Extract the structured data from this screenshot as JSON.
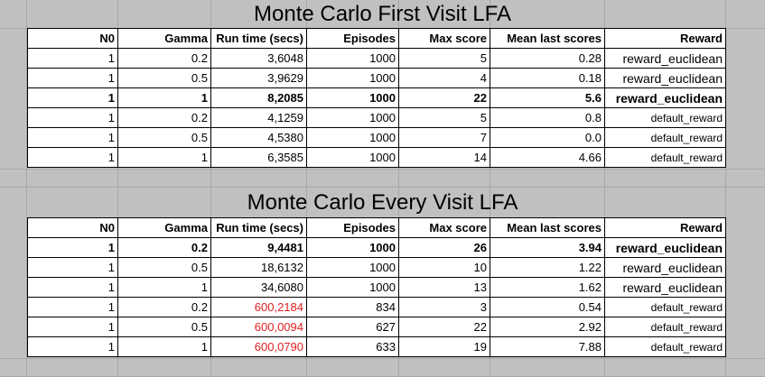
{
  "columns": [
    "N0",
    "Gamma",
    "Run time (secs)",
    "Episodes",
    "Max score",
    "Mean last scores",
    "Reward"
  ],
  "tables": [
    {
      "title": "Monte Carlo First Visit LFA",
      "rows": [
        {
          "n0": "1",
          "gamma": "0.2",
          "runtime": "3,6048",
          "episodes": "1000",
          "max_score": "5",
          "mean": "0.28",
          "reward": "reward_euclidean",
          "bold": false,
          "red_runtime": false
        },
        {
          "n0": "1",
          "gamma": "0.5",
          "runtime": "3,9629",
          "episodes": "1000",
          "max_score": "4",
          "mean": "0.18",
          "reward": "reward_euclidean",
          "bold": false,
          "red_runtime": false
        },
        {
          "n0": "1",
          "gamma": "1",
          "runtime": "8,2085",
          "episodes": "1000",
          "max_score": "22",
          "mean": "5.6",
          "reward": "reward_euclidean",
          "bold": true,
          "red_runtime": false
        },
        {
          "n0": "1",
          "gamma": "0.2",
          "runtime": "4,1259",
          "episodes": "1000",
          "max_score": "5",
          "mean": "0.8",
          "reward": "default_reward",
          "bold": false,
          "red_runtime": false
        },
        {
          "n0": "1",
          "gamma": "0.5",
          "runtime": "4,5380",
          "episodes": "1000",
          "max_score": "7",
          "mean": "0.0",
          "reward": "default_reward",
          "bold": false,
          "red_runtime": false
        },
        {
          "n0": "1",
          "gamma": "1",
          "runtime": "6,3585",
          "episodes": "1000",
          "max_score": "14",
          "mean": "4.66",
          "reward": "default_reward",
          "bold": false,
          "red_runtime": false
        }
      ]
    },
    {
      "title": "Monte Carlo Every Visit LFA",
      "rows": [
        {
          "n0": "1",
          "gamma": "0.2",
          "runtime": "9,4481",
          "episodes": "1000",
          "max_score": "26",
          "mean": "3.94",
          "reward": "reward_euclidean",
          "bold": true,
          "red_runtime": false
        },
        {
          "n0": "1",
          "gamma": "0.5",
          "runtime": "18,6132",
          "episodes": "1000",
          "max_score": "10",
          "mean": "1.22",
          "reward": "reward_euclidean",
          "bold": false,
          "red_runtime": false
        },
        {
          "n0": "1",
          "gamma": "1",
          "runtime": "34,6080",
          "episodes": "1000",
          "max_score": "13",
          "mean": "1.62",
          "reward": "reward_euclidean",
          "bold": false,
          "red_runtime": false
        },
        {
          "n0": "1",
          "gamma": "0.2",
          "runtime": "600,2184",
          "episodes": "834",
          "max_score": "3",
          "mean": "0.54",
          "reward": "default_reward",
          "bold": false,
          "red_runtime": true
        },
        {
          "n0": "1",
          "gamma": "0.5",
          "runtime": "600,0094",
          "episodes": "627",
          "max_score": "22",
          "mean": "2.92",
          "reward": "default_reward",
          "bold": false,
          "red_runtime": true
        },
        {
          "n0": "1",
          "gamma": "1",
          "runtime": "600,0790",
          "episodes": "633",
          "max_score": "19",
          "mean": "7.88",
          "reward": "default_reward",
          "bold": false,
          "red_runtime": true
        }
      ]
    }
  ],
  "colors": {
    "background": "#c0c0c0",
    "gridline": "#a8a8a8",
    "table_bg": "#ffffff",
    "alert_red": "#e02020"
  }
}
